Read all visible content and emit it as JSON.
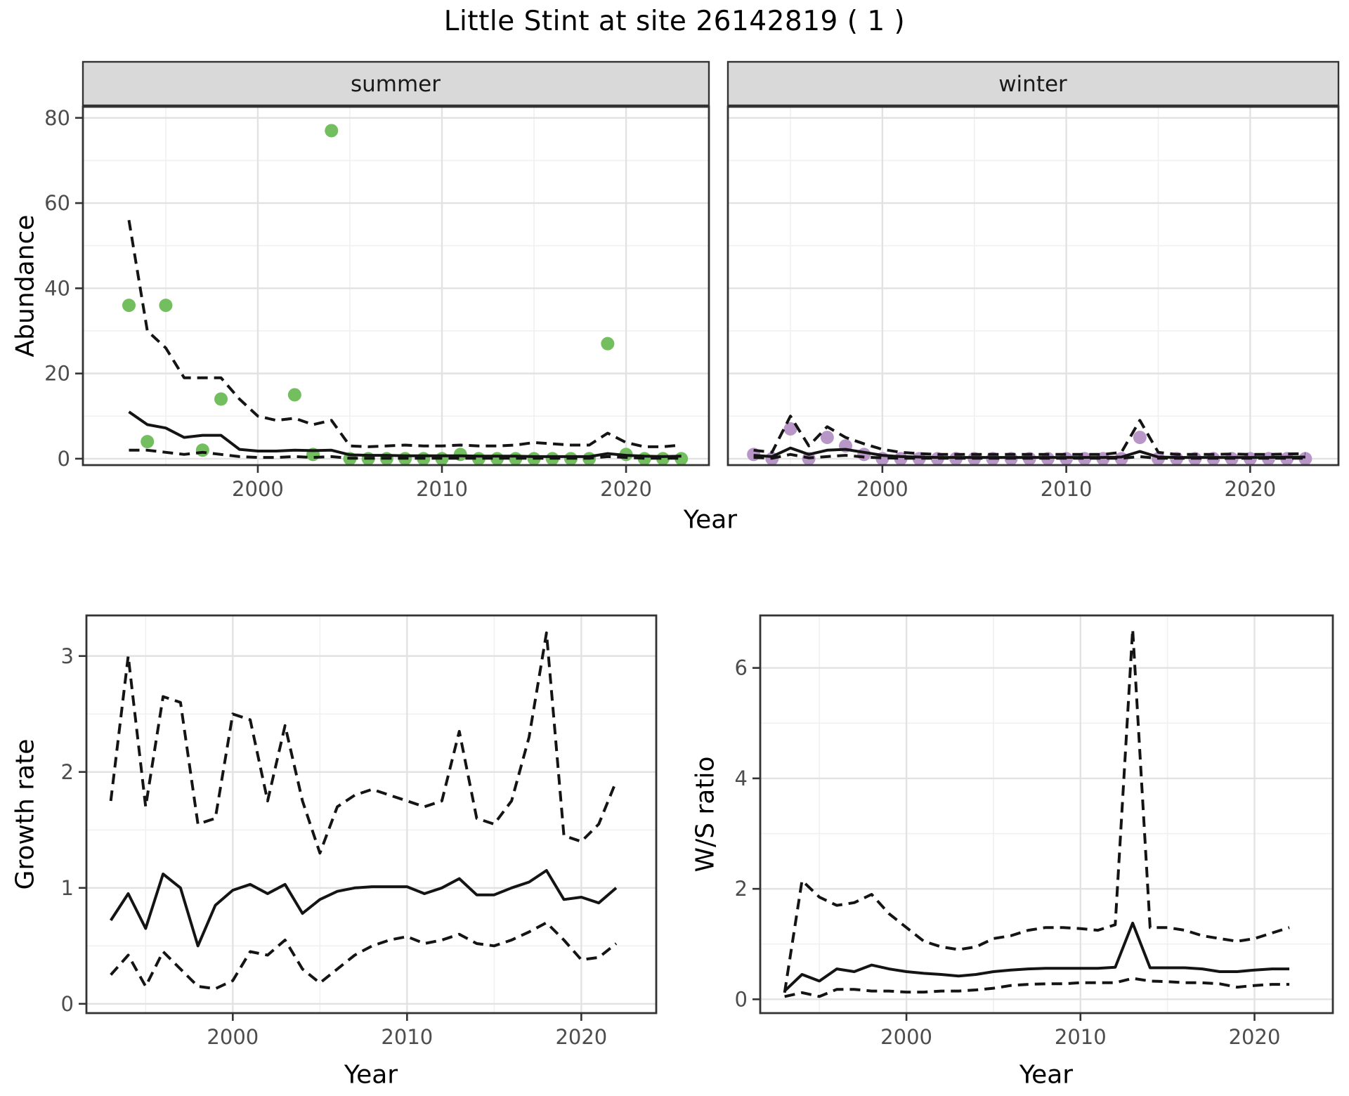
{
  "title": "Little Stint at site 26142819 ( 1 )",
  "colors": {
    "summer_points": "#73be5f",
    "winter_points": "#b996c8",
    "line": "#141414",
    "strip_fill": "#d9d9d9",
    "strip_border": "#333333",
    "panel_border": "#333333",
    "grid_major": "#e2e2e2",
    "grid_minor": "#f0f0f0",
    "tick_mark": "#333333",
    "tick_label": "#4d4d4d",
    "panel_bg": "#ffffff"
  },
  "chart_data": [
    {
      "id": "abundance_summer",
      "type": "scatter",
      "facet_label": "summer",
      "xlabel": "Year",
      "ylabel": "Abundance",
      "xlim": [
        1990.5,
        2024.5
      ],
      "ylim": [
        -1.5,
        82.6
      ],
      "xticks": [
        2000,
        2010,
        2020
      ],
      "yticks": [
        0,
        20,
        40,
        60,
        80
      ],
      "grid": true,
      "legend": "none",
      "series": [
        {
          "name": "observed_counts",
          "style": "points",
          "color_key": "summer_points",
          "x": [
            1993,
            1994,
            1995,
            1997,
            1998,
            2002,
            2003,
            2004,
            2005,
            2006,
            2007,
            2008,
            2009,
            2010,
            2011,
            2012,
            2013,
            2014,
            2015,
            2016,
            2017,
            2018,
            2019,
            2020,
            2021,
            2022,
            2023
          ],
          "y": [
            36,
            4,
            36,
            2,
            14,
            15,
            1,
            77,
            0,
            0,
            0,
            0,
            0,
            0,
            1,
            0,
            0,
            0,
            0,
            0,
            0,
            0,
            27,
            1,
            0,
            0,
            0
          ]
        },
        {
          "name": "model_median",
          "style": "solid",
          "x": [
            1993,
            1994,
            1995,
            1996,
            1997,
            1998,
            1999,
            2000,
            2001,
            2002,
            2003,
            2004,
            2005,
            2006,
            2007,
            2008,
            2009,
            2010,
            2011,
            2012,
            2013,
            2014,
            2015,
            2016,
            2017,
            2018,
            2019,
            2020,
            2021,
            2022,
            2023
          ],
          "y": [
            11,
            8,
            7.2,
            5,
            5.5,
            5.5,
            2.2,
            1.8,
            1.8,
            2,
            1.9,
            2,
            0.9,
            0.8,
            0.8,
            0.7,
            0.7,
            0.7,
            0.7,
            0.6,
            0.6,
            0.6,
            0.5,
            0.5,
            0.5,
            0.5,
            1.2,
            0.8,
            0.6,
            0.5,
            0.6
          ]
        },
        {
          "name": "ci_upper",
          "style": "dashed",
          "x": [
            1993,
            1994,
            1995,
            1996,
            1997,
            1998,
            1999,
            2000,
            2001,
            2002,
            2003,
            2004,
            2005,
            2006,
            2007,
            2008,
            2009,
            2010,
            2011,
            2012,
            2013,
            2014,
            2015,
            2016,
            2017,
            2018,
            2019,
            2020,
            2021,
            2022,
            2023
          ],
          "y": [
            56,
            30,
            26,
            19,
            19,
            19,
            14,
            10,
            9,
            9.5,
            8,
            9,
            3,
            2.8,
            3,
            3.2,
            3,
            3,
            3.2,
            3,
            3,
            3.2,
            3.8,
            3.5,
            3.2,
            3.2,
            6,
            3.8,
            2.8,
            2.8,
            3.2
          ]
        },
        {
          "name": "ci_lower",
          "style": "dashed",
          "x": [
            1993,
            1994,
            1995,
            1996,
            1997,
            1998,
            1999,
            2000,
            2001,
            2002,
            2003,
            2004,
            2005,
            2006,
            2007,
            2008,
            2009,
            2010,
            2011,
            2012,
            2013,
            2014,
            2015,
            2016,
            2017,
            2018,
            2019,
            2020,
            2021,
            2022,
            2023
          ],
          "y": [
            2,
            2,
            1.5,
            1,
            1.5,
            1,
            0.5,
            0.3,
            0.3,
            0.5,
            0.3,
            0.5,
            0.1,
            0.1,
            0.1,
            0.1,
            0.1,
            0.1,
            0.1,
            0.1,
            0.1,
            0.1,
            0.1,
            0.1,
            0.1,
            0.1,
            0.5,
            0.3,
            0.1,
            0.1,
            0.1
          ]
        }
      ]
    },
    {
      "id": "abundance_winter",
      "type": "scatter",
      "facet_label": "winter",
      "xlabel": "Year",
      "ylabel": "Abundance",
      "xlim": [
        1991.6,
        2024.8
      ],
      "ylim": [
        -1.5,
        82.6
      ],
      "xticks": [
        2000,
        2010,
        2020
      ],
      "yticks": [
        0,
        20,
        40,
        60,
        80
      ],
      "grid": true,
      "legend": "none",
      "series": [
        {
          "name": "observed_counts",
          "style": "points",
          "color_key": "winter_points",
          "x": [
            1993,
            1994,
            1995,
            1996,
            1997,
            1998,
            1999,
            2000,
            2001,
            2002,
            2003,
            2004,
            2005,
            2006,
            2007,
            2008,
            2009,
            2010,
            2011,
            2012,
            2013,
            2014,
            2015,
            2016,
            2017,
            2018,
            2019,
            2020,
            2021,
            2022,
            2023
          ],
          "y": [
            1,
            0,
            7,
            0,
            5,
            3,
            1,
            0,
            0,
            0,
            0,
            0,
            0,
            0,
            0,
            0,
            0,
            0,
            0,
            0,
            0,
            5,
            0,
            0,
            0,
            0,
            0,
            0,
            0,
            0,
            0
          ]
        },
        {
          "name": "model_median",
          "style": "solid",
          "x": [
            1993,
            1994,
            1995,
            1996,
            1997,
            1998,
            1999,
            2000,
            2001,
            2002,
            2003,
            2004,
            2005,
            2006,
            2007,
            2008,
            2009,
            2010,
            2011,
            2012,
            2013,
            2014,
            2015,
            2016,
            2017,
            2018,
            2019,
            2020,
            2021,
            2022,
            2023
          ],
          "y": [
            0.8,
            0.5,
            2.5,
            1,
            2,
            2.2,
            1.5,
            0.8,
            0.5,
            0.4,
            0.3,
            0.3,
            0.3,
            0.3,
            0.3,
            0.3,
            0.3,
            0.3,
            0.3,
            0.3,
            0.4,
            1.7,
            0.4,
            0.3,
            0.3,
            0.3,
            0.3,
            0.3,
            0.3,
            0.35,
            0.4
          ]
        },
        {
          "name": "ci_upper",
          "style": "dashed",
          "x": [
            1993,
            1994,
            1995,
            1996,
            1997,
            1998,
            1999,
            2000,
            2001,
            2002,
            2003,
            2004,
            2005,
            2006,
            2007,
            2008,
            2009,
            2010,
            2011,
            2012,
            2013,
            2014,
            2015,
            2016,
            2017,
            2018,
            2019,
            2020,
            2021,
            2022,
            2023
          ],
          "y": [
            2,
            1.5,
            10,
            3,
            7.5,
            5,
            3.5,
            2.2,
            1.5,
            1.2,
            1,
            1,
            1,
            1,
            1,
            1,
            1,
            1,
            1,
            1,
            1.5,
            9,
            1.5,
            1,
            1,
            1,
            1.1,
            1,
            1,
            1.1,
            1.2
          ]
        },
        {
          "name": "ci_lower",
          "style": "dashed",
          "x": [
            1993,
            1994,
            1995,
            1996,
            1997,
            1998,
            1999,
            2000,
            2001,
            2002,
            2003,
            2004,
            2005,
            2006,
            2007,
            2008,
            2009,
            2010,
            2011,
            2012,
            2013,
            2014,
            2015,
            2016,
            2017,
            2018,
            2019,
            2020,
            2021,
            2022,
            2023
          ],
          "y": [
            0.3,
            0.1,
            1,
            0.2,
            0.5,
            0.8,
            0.4,
            0.2,
            0.1,
            0.1,
            0.1,
            0.1,
            0.1,
            0.1,
            0.1,
            0.1,
            0.1,
            0.1,
            0.1,
            0.1,
            0.1,
            0.5,
            0.1,
            0.1,
            0.1,
            0.1,
            0.1,
            0.1,
            0.1,
            0.1,
            0.1
          ]
        }
      ]
    },
    {
      "id": "growth_rate",
      "type": "line",
      "facet_label": "",
      "xlabel": "Year",
      "ylabel": "Growth rate",
      "xlim": [
        1991.6,
        2024.3
      ],
      "ylim": [
        -0.08,
        3.35
      ],
      "xticks": [
        2000,
        2010,
        2020
      ],
      "yticks": [
        0,
        1,
        2,
        3
      ],
      "grid": true,
      "legend": "none",
      "series": [
        {
          "name": "growth_median",
          "style": "solid",
          "x": [
            1993,
            1994,
            1995,
            1996,
            1997,
            1998,
            1999,
            2000,
            2001,
            2002,
            2003,
            2004,
            2005,
            2006,
            2007,
            2008,
            2009,
            2010,
            2011,
            2012,
            2013,
            2014,
            2015,
            2016,
            2017,
            2018,
            2019,
            2020,
            2021,
            2022
          ],
          "y": [
            0.72,
            0.95,
            0.65,
            1.12,
            1.0,
            0.5,
            0.85,
            0.98,
            1.03,
            0.95,
            1.03,
            0.78,
            0.9,
            0.97,
            1.0,
            1.01,
            1.01,
            1.01,
            0.95,
            1.0,
            1.08,
            0.94,
            0.94,
            1.0,
            1.05,
            1.15,
            0.9,
            0.92,
            0.87,
            1.0
          ]
        },
        {
          "name": "ci_upper",
          "style": "dashed",
          "x": [
            1993,
            1994,
            1995,
            1996,
            1997,
            1998,
            1999,
            2000,
            2001,
            2002,
            2003,
            2004,
            2005,
            2006,
            2007,
            2008,
            2009,
            2010,
            2011,
            2012,
            2013,
            2014,
            2015,
            2016,
            2017,
            2018,
            2019,
            2020,
            2021,
            2022
          ],
          "y": [
            1.75,
            3.0,
            1.7,
            2.65,
            2.6,
            1.55,
            1.6,
            2.5,
            2.45,
            1.75,
            2.4,
            1.75,
            1.3,
            1.7,
            1.8,
            1.85,
            1.8,
            1.75,
            1.7,
            1.75,
            2.35,
            1.6,
            1.55,
            1.75,
            2.3,
            3.2,
            1.45,
            1.4,
            1.55,
            1.92
          ]
        },
        {
          "name": "ci_lower",
          "style": "dashed",
          "x": [
            1993,
            1994,
            1995,
            1996,
            1997,
            1998,
            1999,
            2000,
            2001,
            2002,
            2003,
            2004,
            2005,
            2006,
            2007,
            2008,
            2009,
            2010,
            2011,
            2012,
            2013,
            2014,
            2015,
            2016,
            2017,
            2018,
            2019,
            2020,
            2021,
            2022
          ],
          "y": [
            0.25,
            0.42,
            0.15,
            0.45,
            0.3,
            0.15,
            0.13,
            0.2,
            0.45,
            0.42,
            0.55,
            0.3,
            0.18,
            0.3,
            0.42,
            0.5,
            0.55,
            0.58,
            0.52,
            0.55,
            0.6,
            0.52,
            0.5,
            0.55,
            0.62,
            0.7,
            0.55,
            0.38,
            0.4,
            0.52
          ]
        }
      ]
    },
    {
      "id": "ws_ratio",
      "type": "line",
      "facet_label": "",
      "xlabel": "Year",
      "ylabel": "W/S ratio",
      "xlim": [
        1991.6,
        2024.5
      ],
      "ylim": [
        -0.25,
        6.95
      ],
      "xticks": [
        2000,
        2010,
        2020
      ],
      "yticks": [
        0,
        2,
        4,
        6
      ],
      "grid": true,
      "legend": "none",
      "series": [
        {
          "name": "ws_median",
          "style": "solid",
          "x": [
            1993,
            1994,
            1995,
            1996,
            1997,
            1998,
            1999,
            2000,
            2001,
            2002,
            2003,
            2004,
            2005,
            2006,
            2007,
            2008,
            2009,
            2010,
            2011,
            2012,
            2013,
            2014,
            2015,
            2016,
            2017,
            2018,
            2019,
            2020,
            2021,
            2022
          ],
          "y": [
            0.15,
            0.45,
            0.33,
            0.55,
            0.5,
            0.62,
            0.55,
            0.5,
            0.47,
            0.45,
            0.42,
            0.45,
            0.5,
            0.53,
            0.55,
            0.56,
            0.56,
            0.56,
            0.56,
            0.58,
            1.38,
            0.57,
            0.57,
            0.57,
            0.55,
            0.5,
            0.5,
            0.53,
            0.55,
            0.55
          ]
        },
        {
          "name": "ci_upper",
          "style": "dashed",
          "x": [
            1993,
            1994,
            1995,
            1996,
            1997,
            1998,
            1999,
            2000,
            2001,
            2002,
            2003,
            2004,
            2005,
            2006,
            2007,
            2008,
            2009,
            2010,
            2011,
            2012,
            2013,
            2014,
            2015,
            2016,
            2017,
            2018,
            2019,
            2020,
            2021,
            2022
          ],
          "y": [
            0.12,
            2.15,
            1.85,
            1.7,
            1.75,
            1.9,
            1.55,
            1.3,
            1.05,
            0.95,
            0.9,
            0.95,
            1.1,
            1.15,
            1.25,
            1.3,
            1.3,
            1.28,
            1.25,
            1.35,
            6.7,
            1.3,
            1.3,
            1.25,
            1.15,
            1.1,
            1.05,
            1.1,
            1.2,
            1.3
          ]
        },
        {
          "name": "ci_lower",
          "style": "dashed",
          "x": [
            1993,
            1994,
            1995,
            1996,
            1997,
            1998,
            1999,
            2000,
            2001,
            2002,
            2003,
            2004,
            2005,
            2006,
            2007,
            2008,
            2009,
            2010,
            2011,
            2012,
            2013,
            2014,
            2015,
            2016,
            2017,
            2018,
            2019,
            2020,
            2021,
            2022
          ],
          "y": [
            0.05,
            0.12,
            0.05,
            0.18,
            0.18,
            0.15,
            0.15,
            0.13,
            0.13,
            0.15,
            0.15,
            0.17,
            0.2,
            0.25,
            0.27,
            0.28,
            0.28,
            0.3,
            0.3,
            0.3,
            0.38,
            0.33,
            0.32,
            0.3,
            0.3,
            0.28,
            0.22,
            0.25,
            0.27,
            0.27
          ]
        }
      ]
    }
  ]
}
